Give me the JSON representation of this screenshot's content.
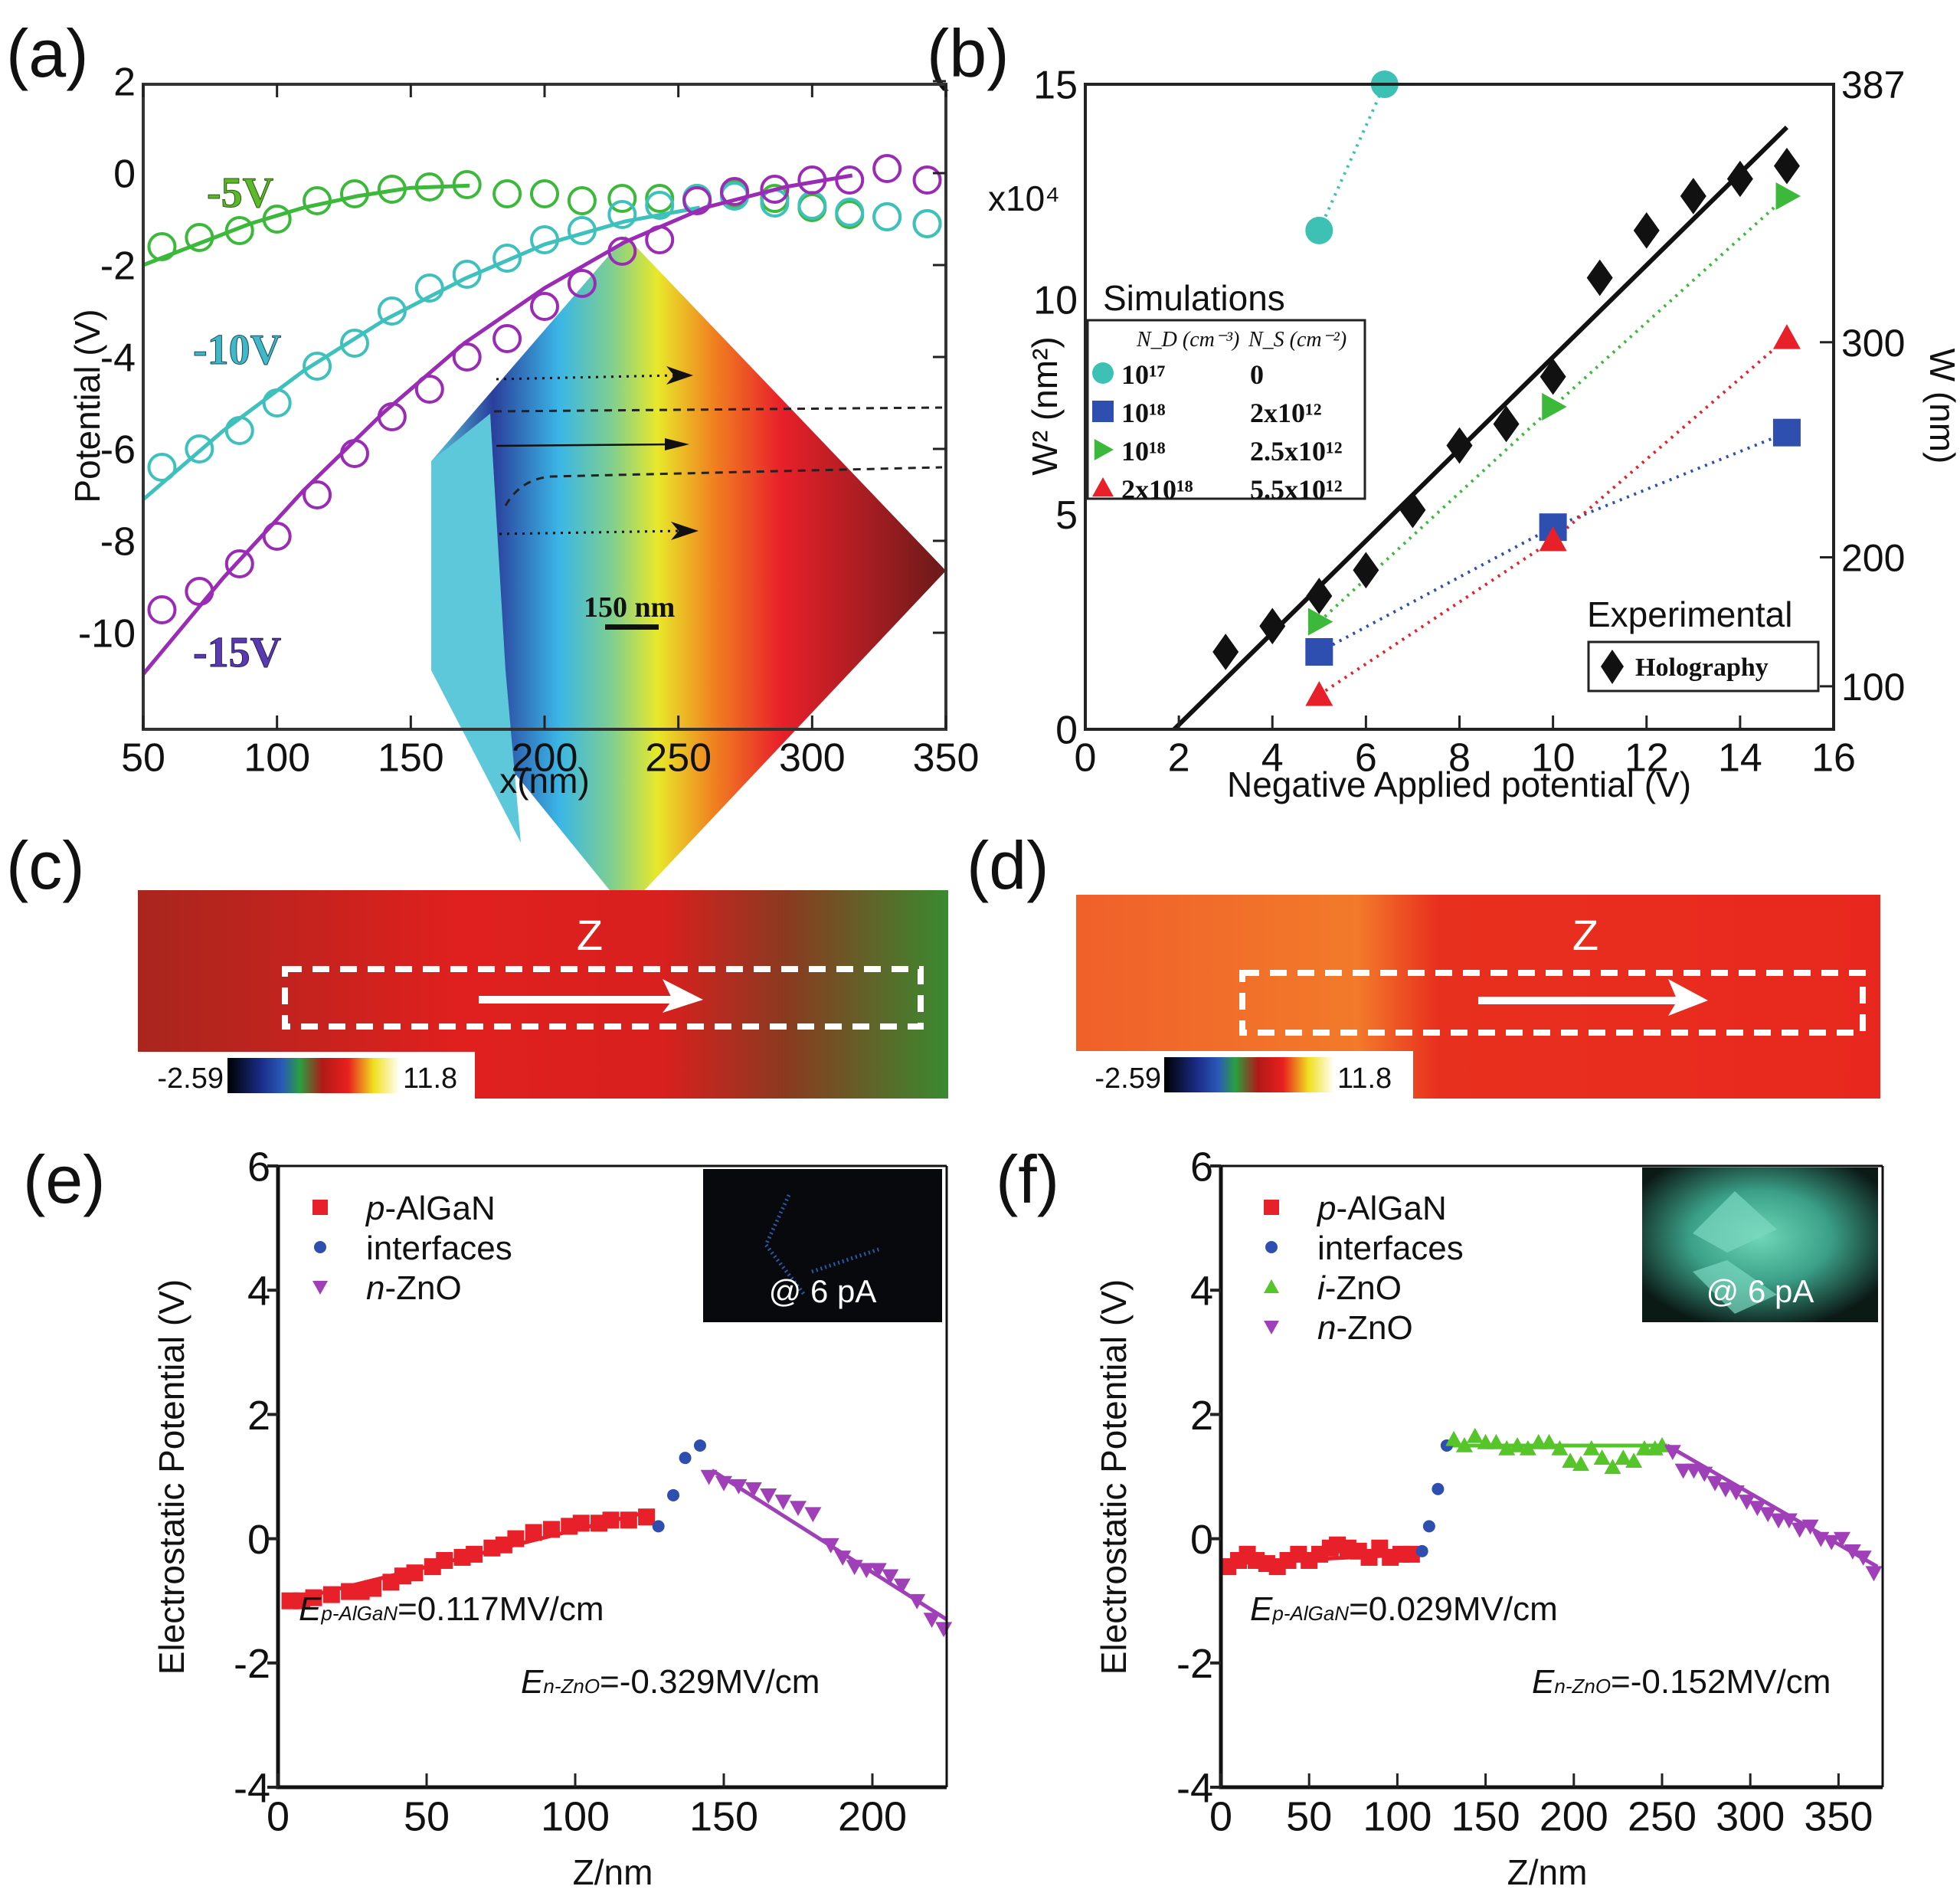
{
  "panels": {
    "a": {
      "label": "(a)"
    },
    "b": {
      "label": "(b)"
    },
    "c": {
      "label": "(c)"
    },
    "d": {
      "label": "(d)"
    },
    "e": {
      "label": "(e)"
    },
    "f": {
      "label": "(f)"
    }
  },
  "chart_data": [
    {
      "id": "a",
      "type": "line",
      "title": "",
      "xlabel": "x(nm)",
      "ylabel": "Potential (V)",
      "xlim": [
        50,
        350
      ],
      "ylim": [
        -12,
        2
      ],
      "xticks": [
        50,
        100,
        150,
        200,
        250,
        300,
        350
      ],
      "yticks": [
        2,
        0,
        -2,
        -4,
        -6,
        -8,
        -10
      ],
      "series": [
        {
          "name": "-5V",
          "color": "#3cb83a",
          "points_x": [
            57,
            71,
            86,
            100,
            115,
            129,
            143,
            157,
            171,
            186,
            200,
            214,
            229,
            243,
            257,
            271,
            286,
            300,
            314,
            328,
            343
          ],
          "points_y": [
            -1.6,
            -1.4,
            -1.25,
            -1.0,
            -0.6,
            -0.45,
            -0.35,
            -0.3,
            -0.25,
            -0.45,
            -0.45,
            -0.6,
            -0.55,
            -0.55,
            -0.55,
            -0.45,
            -0.55,
            -0.75,
            -0.9,
            -0.95,
            -1.1
          ],
          "fit_x": [
            50,
            70,
            90,
            110,
            130,
            150,
            172
          ],
          "fit_y": [
            -2.0,
            -1.55,
            -1.1,
            -0.75,
            -0.5,
            -0.32,
            -0.27
          ]
        },
        {
          "name": "-10V",
          "color": "#3ec1bd",
          "points_x": [
            57,
            71,
            86,
            100,
            115,
            129,
            143,
            157,
            171,
            186,
            200,
            214,
            229,
            243,
            257,
            271,
            286,
            300,
            314,
            328,
            343
          ],
          "points_y": [
            -6.4,
            -6.0,
            -5.6,
            -5.0,
            -4.2,
            -3.7,
            -3.0,
            -2.5,
            -2.2,
            -1.85,
            -1.45,
            -1.25,
            -0.9,
            -0.7,
            -0.55,
            -0.5,
            -0.65,
            -0.7,
            -0.85,
            -0.95,
            -1.1
          ],
          "fit_x": [
            50,
            80,
            110,
            140,
            170,
            200,
            230,
            258
          ],
          "fit_y": [
            -7.1,
            -5.6,
            -4.3,
            -3.2,
            -2.3,
            -1.55,
            -1.05,
            -0.75
          ]
        },
        {
          "name": "-15V",
          "color": "#9a2bb5",
          "points_x": [
            57,
            71,
            86,
            100,
            115,
            129,
            143,
            157,
            171,
            186,
            200,
            214,
            229,
            243,
            257,
            271,
            286,
            300,
            314,
            328,
            343
          ],
          "points_y": [
            -9.5,
            -9.1,
            -8.5,
            -7.9,
            -7.0,
            -6.1,
            -5.3,
            -4.7,
            -4.0,
            -3.6,
            -2.9,
            -2.4,
            -1.7,
            -1.45,
            -0.6,
            -0.4,
            -0.35,
            -0.15,
            -0.15,
            0.1,
            -0.15
          ],
          "fit_x": [
            50,
            80,
            110,
            140,
            170,
            200,
            230,
            260,
            290,
            315
          ],
          "fit_y": [
            -10.9,
            -8.8,
            -6.9,
            -5.2,
            -3.7,
            -2.5,
            -1.5,
            -0.75,
            -0.3,
            -0.05
          ]
        }
      ],
      "annotations": [
        "-5V",
        "-10V",
        "-15V",
        "150 nm"
      ]
    },
    {
      "id": "b",
      "type": "scatter",
      "xlabel": "Negative Applied potential (V)",
      "ylabel": "W² (nm²)",
      "ylabel_right": "W (nm)",
      "y_multiplier": "x10⁴",
      "xlim": [
        0,
        16
      ],
      "ylim": [
        0,
        15
      ],
      "xticks": [
        0,
        2,
        4,
        6,
        8,
        10,
        12,
        14,
        16
      ],
      "yticks": [
        0,
        5,
        10,
        15
      ],
      "yticks_right": [
        {
          "label": "387",
          "at": 15
        },
        {
          "label": "300",
          "at": 9
        },
        {
          "label": "200",
          "at": 4
        },
        {
          "label": "100",
          "at": 1
        }
      ],
      "experimental": {
        "name": "Holography",
        "color": "#111111",
        "x": [
          3,
          4,
          5,
          6,
          7,
          8,
          9,
          10,
          11,
          12,
          13,
          14,
          15
        ],
        "y": [
          1.8,
          2.4,
          3.1,
          3.7,
          5.1,
          6.6,
          7.1,
          8.2,
          10.5,
          11.6,
          12.4,
          12.8,
          13.1
        ],
        "fit_x": [
          1.9,
          15
        ],
        "fit_y": [
          0,
          14
        ]
      },
      "simulations": [
        {
          "nd": "10¹⁷",
          "ns": "0",
          "marker": "circle",
          "color": "#3ec1b5",
          "x": [
            5,
            6.4
          ],
          "y": [
            11.6,
            15
          ]
        },
        {
          "nd": "10¹⁸",
          "ns": "2x10¹²",
          "marker": "square",
          "color": "#2f4fb0",
          "x": [
            5,
            10,
            15
          ],
          "y": [
            1.8,
            4.7,
            6.9
          ]
        },
        {
          "nd": "10¹⁸",
          "ns": "2.5x10¹²",
          "marker": "triangle-right",
          "color": "#3cb83a",
          "x": [
            5,
            10,
            15
          ],
          "y": [
            2.5,
            7.5,
            12.4
          ]
        },
        {
          "nd": "2x10¹⁸",
          "ns": "5.5x10¹²",
          "marker": "triangle-up",
          "color": "#e8202a",
          "x": [
            5,
            10,
            15
          ],
          "y": [
            0.8,
            4.4,
            9.1
          ]
        }
      ],
      "legend": {
        "sim_title": "Simulations",
        "col1": "N_D (cm⁻³)",
        "col2": "N_S (cm⁻²)",
        "exp_title": "Experimental",
        "exp_label": "Holography"
      }
    },
    {
      "id": "e",
      "type": "scatter",
      "xlabel": "Z/nm",
      "ylabel": "Electrostatic Potential (V)",
      "xlim": [
        0,
        225
      ],
      "ylim": [
        -4,
        6
      ],
      "xticks": [
        0,
        50,
        100,
        150,
        200
      ],
      "yticks": [
        -4,
        -2,
        0,
        2,
        4,
        6
      ],
      "series": [
        {
          "name": "p-AlGaN",
          "marker": "square",
          "color": "#e8202a",
          "x": [
            4,
            8,
            12,
            18,
            24,
            28,
            32,
            38,
            42,
            46,
            52,
            56,
            62,
            66,
            72,
            76,
            80,
            86,
            92,
            98,
            102,
            108,
            112,
            118,
            124
          ],
          "y": [
            -1.0,
            -1.0,
            -0.95,
            -0.9,
            -0.85,
            -0.85,
            -0.8,
            -0.7,
            -0.6,
            -0.55,
            -0.45,
            -0.35,
            -0.3,
            -0.25,
            -0.15,
            -0.1,
            0.0,
            0.1,
            0.15,
            0.2,
            0.25,
            0.25,
            0.3,
            0.3,
            0.35
          ]
        },
        {
          "name": "interfaces",
          "marker": "circle",
          "color": "#2f4fb0",
          "x": [
            128,
            133,
            137,
            142
          ],
          "y": [
            0.2,
            0.7,
            1.3,
            1.5
          ]
        },
        {
          "name": "n-ZnO",
          "marker": "triangle-down",
          "color": "#a040b8",
          "x": [
            145,
            150,
            155,
            160,
            165,
            170,
            175,
            180,
            186,
            190,
            194,
            198,
            202,
            206,
            210,
            215,
            220,
            224
          ],
          "y": [
            1.0,
            0.9,
            0.85,
            0.8,
            0.7,
            0.6,
            0.5,
            0.4,
            -0.1,
            -0.3,
            -0.45,
            -0.5,
            -0.5,
            -0.6,
            -0.75,
            -1.0,
            -1.3,
            -1.45
          ]
        }
      ],
      "fits": [
        {
          "color": "#e8202a",
          "x": [
            4,
            126
          ],
          "y": [
            -1.0,
            0.45
          ]
        },
        {
          "color": "#a040b8",
          "x": [
            146,
            225
          ],
          "y": [
            1.1,
            -1.3
          ]
        }
      ],
      "annotations": {
        "field1_prefix": "E",
        "field1_sub": "p-AlGaN",
        "field1_value": "=0.117MV/cm",
        "field2_prefix": "E",
        "field2_sub": "n-ZnO",
        "field2_value": "=-0.329MV/cm",
        "inset_label": "@ 6 pA"
      }
    },
    {
      "id": "f",
      "type": "scatter",
      "xlabel": "Z/nm",
      "ylabel": "Electrostatic Potential (V)",
      "xlim": [
        0,
        375
      ],
      "ylim": [
        -4,
        6
      ],
      "xticks": [
        0,
        50,
        100,
        150,
        200,
        250,
        300,
        350
      ],
      "yticks": [
        -4,
        -2,
        0,
        2,
        4,
        6
      ],
      "series": [
        {
          "name": "p-AlGaN",
          "marker": "square",
          "color": "#e8202a",
          "x": [
            4,
            10,
            15,
            20,
            26,
            32,
            38,
            44,
            50,
            56,
            62,
            66,
            72,
            78,
            84,
            90,
            96,
            102,
            108
          ],
          "y": [
            -0.45,
            -0.35,
            -0.25,
            -0.35,
            -0.4,
            -0.45,
            -0.35,
            -0.25,
            -0.35,
            -0.25,
            -0.15,
            -0.1,
            -0.15,
            -0.2,
            -0.3,
            -0.15,
            -0.3,
            -0.25,
            -0.25
          ]
        },
        {
          "name": "interfaces",
          "marker": "circle",
          "color": "#2f4fb0",
          "x": [
            114,
            118,
            123,
            128
          ],
          "y": [
            -0.2,
            0.2,
            0.8,
            1.5
          ]
        },
        {
          "name": "i-ZnO",
          "marker": "triangle-up",
          "color": "#55c52a",
          "x": [
            132,
            138,
            144,
            150,
            156,
            162,
            168,
            174,
            180,
            186,
            192,
            198,
            204,
            210,
            216,
            222,
            228,
            234,
            240,
            246,
            250
          ],
          "y": [
            1.6,
            1.5,
            1.65,
            1.55,
            1.55,
            1.45,
            1.5,
            1.45,
            1.55,
            1.55,
            1.45,
            1.25,
            1.2,
            1.45,
            1.3,
            1.15,
            1.3,
            1.25,
            1.45,
            1.45,
            1.5
          ]
        },
        {
          "name": "n-ZnO",
          "marker": "triangle-down",
          "color": "#a040b8",
          "x": [
            256,
            262,
            268,
            274,
            280,
            286,
            292,
            298,
            304,
            310,
            316,
            322,
            328,
            334,
            340,
            346,
            352,
            358,
            364,
            370
          ],
          "y": [
            1.4,
            1.1,
            1.1,
            1.05,
            0.9,
            0.8,
            0.75,
            0.6,
            0.5,
            0.4,
            0.3,
            0.3,
            0.15,
            0.2,
            0.0,
            -0.05,
            0.0,
            -0.2,
            -0.3,
            -0.55
          ]
        }
      ],
      "fits": [
        {
          "color": "#e8202a",
          "x": [
            4,
            110
          ],
          "y": [
            -0.4,
            -0.25
          ]
        },
        {
          "color": "#55c52a",
          "x": [
            130,
            253
          ],
          "y": [
            1.5,
            1.5
          ]
        },
        {
          "color": "#a040b8",
          "x": [
            253,
            372
          ],
          "y": [
            1.5,
            -0.45
          ]
        }
      ],
      "annotations": {
        "field1_prefix": "E",
        "field1_sub": "p-AlGaN",
        "field1_value": "=0.029MV/cm",
        "field2_prefix": "E",
        "field2_sub": "n-ZnO",
        "field2_value": "=-0.152MV/cm",
        "inset_label": "@ 6 pA"
      }
    }
  ],
  "maps": {
    "c": {
      "axis_label": "Z",
      "cbar_min": "-2.59",
      "cbar_max": "11.8"
    },
    "d": {
      "axis_label": "Z",
      "cbar_min": "-2.59",
      "cbar_max": "11.8"
    }
  }
}
